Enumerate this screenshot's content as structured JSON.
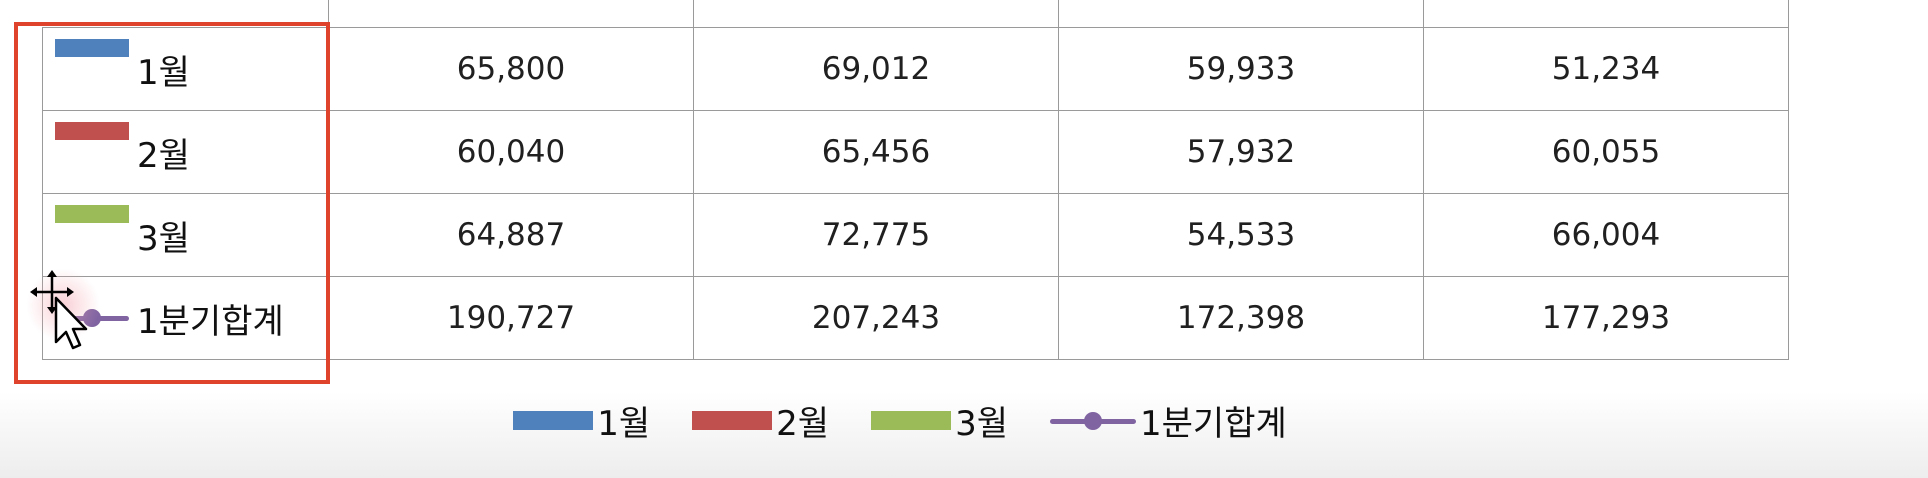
{
  "chart_data": {
    "type": "table",
    "columns": [
      "",
      "",
      "",
      ""
    ],
    "rows": [
      {
        "label": "1월",
        "values": [
          "65,800",
          "69,012",
          "59,933",
          "51,234"
        ],
        "color": "#4f81bd",
        "marker": "bar"
      },
      {
        "label": "2월",
        "values": [
          "60,040",
          "65,456",
          "57,932",
          "60,055"
        ],
        "color": "#c0504d",
        "marker": "bar"
      },
      {
        "label": "3월",
        "values": [
          "64,887",
          "72,775",
          "54,533",
          "66,004"
        ],
        "color": "#9bbb59",
        "marker": "bar"
      },
      {
        "label": "1분기합계",
        "values": [
          "190,727",
          "207,243",
          "172,398",
          "177,293"
        ],
        "color": "#8064a2",
        "marker": "line"
      }
    ],
    "legend": [
      {
        "label": "1월",
        "color": "#4f81bd",
        "marker": "bar"
      },
      {
        "label": "2월",
        "color": "#c0504d",
        "marker": "bar"
      },
      {
        "label": "3월",
        "color": "#9bbb59",
        "marker": "bar"
      },
      {
        "label": "1분기합계",
        "color": "#8064a2",
        "marker": "line"
      }
    ],
    "legend_placement": "bottom"
  },
  "annotation": {
    "highlight_color": "#e0432c"
  },
  "cursor": {
    "icon": "move-cursor-icon"
  }
}
